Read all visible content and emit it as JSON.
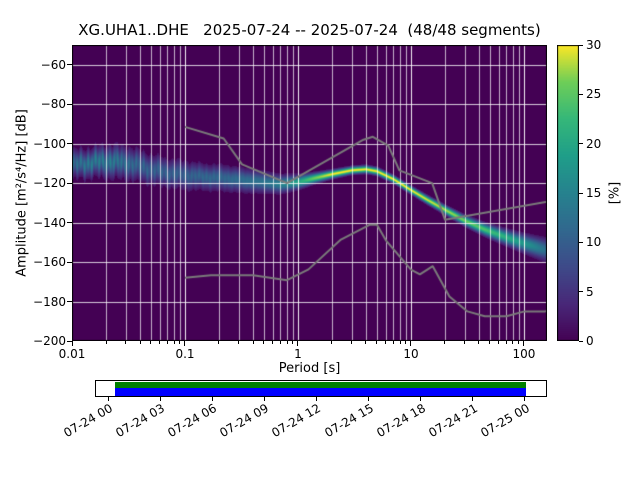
{
  "chart_data": {
    "type": "heatmap",
    "title": "XG.UHA1..DHE   2025-07-24 -- 2025-07-24  (48/48 segments)",
    "xlabel": "Period [s]",
    "ylabel": "Amplitude [m²/s⁴/Hz] [dB]",
    "x_scale": "log",
    "xlim": [
      0.01,
      160
    ],
    "ylim": [
      -200,
      -50
    ],
    "grid": true,
    "background_color": "#440154",
    "x_ticks": [
      {
        "value": 0.01,
        "label": "0.01"
      },
      {
        "value": 0.1,
        "label": "0.1"
      },
      {
        "value": 1,
        "label": "1"
      },
      {
        "value": 10,
        "label": "10"
      },
      {
        "value": 100,
        "label": "100"
      }
    ],
    "y_ticks": [
      {
        "value": -60,
        "label": "−60"
      },
      {
        "value": -80,
        "label": "−80"
      },
      {
        "value": -100,
        "label": "−100"
      },
      {
        "value": -120,
        "label": "−120"
      },
      {
        "value": -140,
        "label": "−140"
      },
      {
        "value": -160,
        "label": "−160"
      },
      {
        "value": -180,
        "label": "−180"
      },
      {
        "value": -200,
        "label": "−200"
      }
    ],
    "colorbar": {
      "label": "[%]",
      "min": 0,
      "max": 30,
      "ticks": [
        0,
        5,
        10,
        15,
        20,
        25,
        30
      ],
      "colormap": "viridis"
    },
    "viridis_stops": [
      [
        0.0,
        "#440154"
      ],
      [
        0.125,
        "#482878"
      ],
      [
        0.25,
        "#3e4a89"
      ],
      [
        0.375,
        "#31688e"
      ],
      [
        0.5,
        "#26828e"
      ],
      [
        0.625,
        "#1f9e89"
      ],
      [
        0.75,
        "#35b779"
      ],
      [
        0.875,
        "#6ece58"
      ],
      [
        1.0,
        "#fde725"
      ]
    ],
    "ppsd_mode": {
      "comment": "probability-density ridge: mode amplitude [dB], peak probability [%], spread [dB] vs period [s]",
      "periods": [
        0.01,
        0.015,
        0.022,
        0.032,
        0.05,
        0.07,
        0.1,
        0.15,
        0.22,
        0.32,
        0.5,
        0.7,
        1.0,
        1.4,
        2.0,
        3.0,
        4.0,
        5.0,
        7.0,
        10,
        14,
        20,
        30,
        45,
        70,
        100,
        130,
        160
      ],
      "db": [
        -111,
        -109.5,
        -109,
        -110,
        -113,
        -115,
        -116,
        -117,
        -117.5,
        -118.5,
        -119.5,
        -120.5,
        -119.5,
        -117.5,
        -115.5,
        -113.5,
        -113,
        -114,
        -118,
        -123.5,
        -128.5,
        -133.5,
        -139,
        -143.5,
        -147.5,
        -150.5,
        -152.5,
        -154
      ],
      "peak_percent": [
        11,
        13,
        13,
        11,
        10,
        10,
        10,
        11,
        11,
        12,
        13,
        15,
        20,
        26,
        30,
        30,
        30,
        30,
        30,
        30,
        29,
        28,
        26,
        24,
        21,
        18,
        15,
        12
      ],
      "spread_db": [
        4,
        4,
        4.5,
        4.5,
        4.2,
        4,
        4,
        3.6,
        3.6,
        3.4,
        3,
        2.6,
        2,
        1.5,
        1.2,
        1.1,
        1.1,
        1.1,
        1.1,
        1.1,
        1.2,
        1.3,
        1.5,
        1.8,
        2.2,
        2.6,
        3,
        3.4
      ]
    },
    "noise_models": {
      "color": "#7a7a7a",
      "nhnm": [
        [
          0.1,
          -91.5
        ],
        [
          0.22,
          -97.4
        ],
        [
          0.32,
          -110.5
        ],
        [
          0.8,
          -120
        ],
        [
          3.8,
          -98
        ],
        [
          4.6,
          -96.5
        ],
        [
          6.3,
          -101
        ],
        [
          7.9,
          -113.5
        ],
        [
          15.4,
          -120
        ],
        [
          20,
          -138.5
        ],
        [
          354.8,
          -126
        ]
      ],
      "nlnm": [
        [
          0.1,
          -168
        ],
        [
          0.17,
          -166.7
        ],
        [
          0.4,
          -166.7
        ],
        [
          0.8,
          -169.2
        ],
        [
          1.24,
          -163.7
        ],
        [
          2.4,
          -148.6
        ],
        [
          4.3,
          -141.1
        ],
        [
          5,
          -141.1
        ],
        [
          6,
          -149
        ],
        [
          10,
          -163.8
        ],
        [
          12,
          -166.2
        ],
        [
          15.6,
          -162.1
        ],
        [
          21.9,
          -177.5
        ],
        [
          31.6,
          -185
        ],
        [
          45,
          -187.5
        ],
        [
          70,
          -187.5
        ],
        [
          101,
          -185
        ],
        [
          154,
          -185
        ],
        [
          328,
          -179.4
        ]
      ]
    }
  },
  "timeline": {
    "labels": [
      "07-24 00",
      "07-24 03",
      "07-24 06",
      "07-24 09",
      "07-24 12",
      "07-24 15",
      "07-24 18",
      "07-24 21",
      "07-25 00"
    ],
    "data_color_top": "#008000",
    "data_color_bottom": "#0000ff"
  }
}
